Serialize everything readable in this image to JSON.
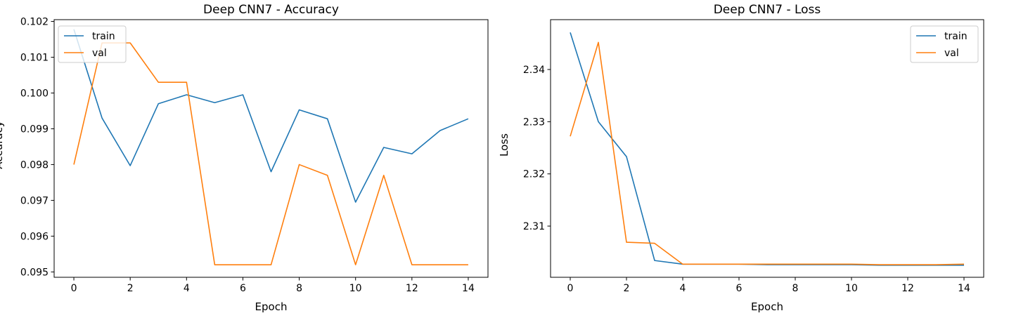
{
  "chart_data": [
    {
      "type": "line",
      "title": "Deep CNN7 - Accuracy",
      "xlabel": "Epoch",
      "ylabel": "Accuracy",
      "xlim": [
        -0.7,
        14.7
      ],
      "ylim": [
        0.09485,
        0.10205
      ],
      "xticks": [
        0,
        2,
        4,
        6,
        8,
        10,
        12,
        14
      ],
      "yticks": [
        0.095,
        0.096,
        0.097,
        0.098,
        0.099,
        0.1,
        0.101,
        0.102
      ],
      "ytick_labels": [
        "0.095",
        "0.096",
        "0.097",
        "0.098",
        "0.099",
        "0.100",
        "0.101",
        "0.102"
      ],
      "legend_position": "upper-left",
      "grid": false,
      "x": [
        0,
        1,
        2,
        3,
        4,
        5,
        6,
        7,
        8,
        9,
        10,
        11,
        12,
        13,
        14
      ],
      "series": [
        {
          "name": "train",
          "color": "#1f77b4",
          "values": [
            0.10178,
            0.0993,
            0.09797,
            0.0997,
            0.09995,
            0.09973,
            0.09995,
            0.0978,
            0.09953,
            0.09928,
            0.09695,
            0.09848,
            0.0983,
            0.09895,
            0.09928
          ]
        },
        {
          "name": "val",
          "color": "#ff7f0e",
          "values": [
            0.098,
            0.1014,
            0.1014,
            0.1003,
            0.1003,
            0.0952,
            0.0952,
            0.0952,
            0.098,
            0.0977,
            0.0952,
            0.0977,
            0.0952,
            0.0952,
            0.0952
          ]
        }
      ]
    },
    {
      "type": "line",
      "title": "Deep CNN7 - Loss",
      "xlabel": "Epoch",
      "ylabel": "Loss",
      "xlim": [
        -0.7,
        14.7
      ],
      "ylim": [
        2.30019,
        2.34955
      ],
      "xticks": [
        0,
        2,
        4,
        6,
        8,
        10,
        12,
        14
      ],
      "yticks": [
        2.31,
        2.32,
        2.33,
        2.34
      ],
      "ytick_labels": [
        "2.31",
        "2.32",
        "2.33",
        "2.34"
      ],
      "legend_position": "upper-right",
      "grid": false,
      "x": [
        0,
        1,
        2,
        3,
        4,
        5,
        6,
        7,
        8,
        9,
        10,
        11,
        12,
        13,
        14
      ],
      "series": [
        {
          "name": "train",
          "color": "#1f77b4",
          "values": [
            2.3471,
            2.33,
            2.3233,
            2.3034,
            2.3027,
            2.3027,
            2.3027,
            2.3026,
            2.3026,
            2.3026,
            2.3026,
            2.3025,
            2.3025,
            2.3025,
            2.3025
          ]
        },
        {
          "name": "val",
          "color": "#ff7f0e",
          "values": [
            2.3272,
            2.3452,
            2.3069,
            2.3067,
            2.3027,
            2.3027,
            2.3027,
            2.3027,
            2.3027,
            2.3027,
            2.3027,
            2.3026,
            2.3026,
            2.3026,
            2.3027
          ]
        }
      ]
    }
  ]
}
